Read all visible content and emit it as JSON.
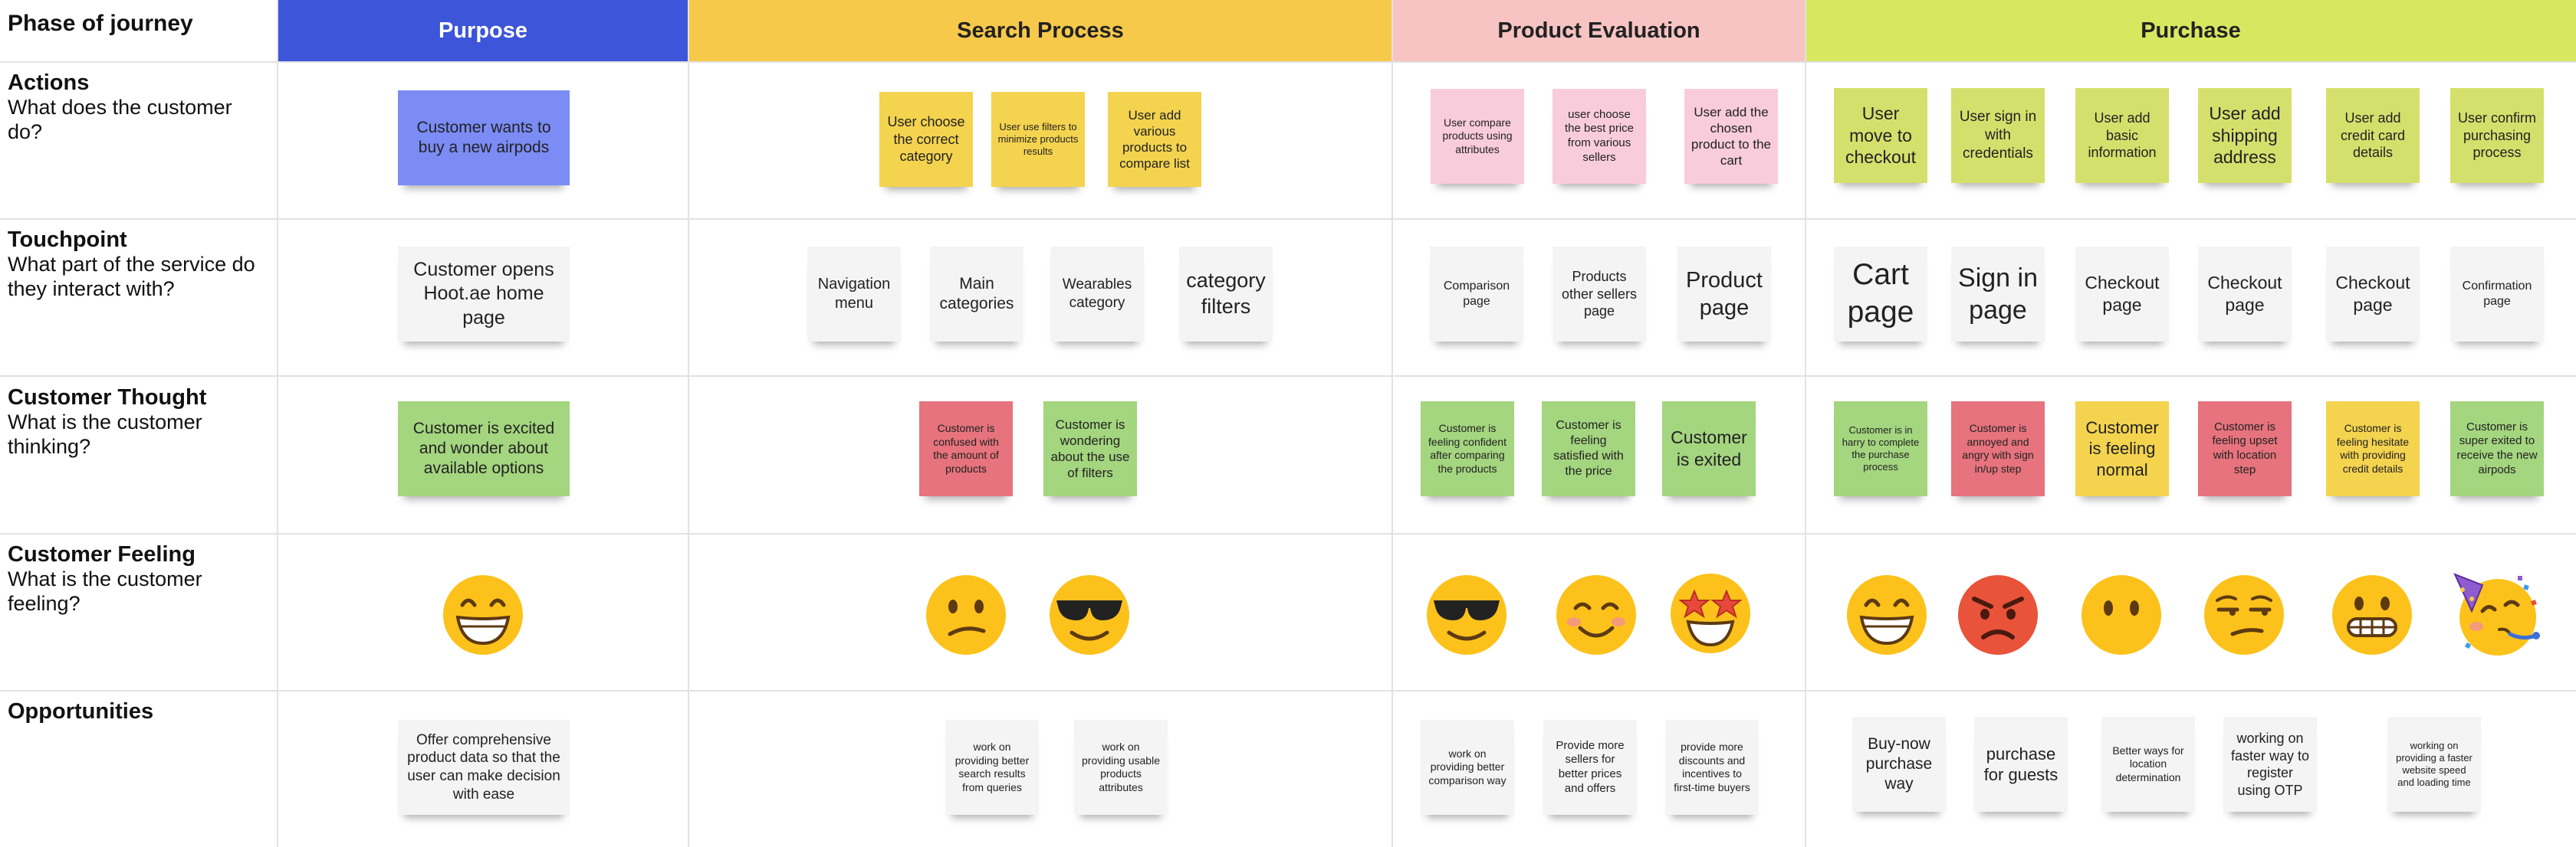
{
  "header": {
    "row_label": "Phase of journey",
    "phases": [
      "Purpose",
      "Search Process",
      "Product Evaluation",
      "Purchase"
    ]
  },
  "rows": [
    {
      "title": "Actions",
      "subtitle": "What does the customer do?"
    },
    {
      "title": "Touchpoint",
      "subtitle": "What part of the service do they interact with?"
    },
    {
      "title": "Customer Thought",
      "subtitle": "What is the customer thinking?"
    },
    {
      "title": "Customer Feeling",
      "subtitle": "What is the customer feeling?"
    },
    {
      "title": "Opportunities",
      "subtitle": ""
    }
  ],
  "actions": [
    "Customer wants to buy a new airpods",
    "User choose the correct category",
    "User use filters to minimize products results",
    "User add various products to compare list",
    "User compare products using attributes",
    "user choose the best price from various sellers",
    "User add the chosen product to the cart",
    "User move to checkout",
    "User sign in with credentials",
    "User add basic information",
    "User add shipping address",
    "User add credit card details",
    "User confirm purchasing process"
  ],
  "touchpoints": [
    "Customer opens Hoot.ae home page",
    "Navigation menu",
    "Main categories",
    "Wearables category",
    "category filters",
    "Comparison page",
    "Products other sellers page",
    "Product page",
    "Cart page",
    "Sign in page",
    "Checkout page",
    "Checkout page",
    "Checkout page",
    "Confirmation page"
  ],
  "thoughts": [
    "Customer is excited and wonder about available options",
    "Customer is confused with the amount of products",
    "Customer is wondering about the use of filters",
    "Customer is feeling confident after comparing the products",
    "Customer is feeling satisfied with the price",
    "Customer is exited",
    "Customer is in harry to complete the purchase process",
    "Customer is annoyed and angry with sign in/up step",
    "Customer is feeling normal",
    "Customer is feeling upset with location step",
    "Customer is feeling hesitate with providing credit details",
    "Customer is super exited to receive the new airpods"
  ],
  "feelings": [
    "grinning-face-icon",
    "confused-face-icon",
    "sunglasses-face-icon",
    "sunglasses-face-icon",
    "smiling-face-icon",
    "star-struck-face-icon",
    "grinning-face-icon",
    "angry-face-icon",
    "neutral-face-icon",
    "unamused-face-icon",
    "grimacing-face-icon",
    "party-face-icon"
  ],
  "opportunities": [
    "Offer comprehensive product data so that the user can make decision with ease",
    "work on providing better search results from queries",
    "work on providing usable products attributes",
    "work on providing better comparison way",
    "Provide more sellers for better prices and offers",
    "provide more discounts and incentives to first-time buyers",
    "Buy-now purchase way",
    "purchase for guests",
    "Better ways for location determination",
    "working on faster way to register using OTP",
    "working on providing a faster website speed and loading time"
  ],
  "colors": {
    "purpose": "#3d55d9",
    "search": "#f7c94a",
    "evaluation": "#f7c3c3",
    "purchase": "#d7e860",
    "note_blue": "#7b8cf5",
    "note_yellow": "#f4d34f",
    "note_pink": "#f9ccdc",
    "note_lime": "#d5e06c",
    "note_white": "#f4f4f4",
    "note_green": "#a4d57f",
    "note_red": "#e6737d",
    "emoji_face": "#fcc21b"
  }
}
